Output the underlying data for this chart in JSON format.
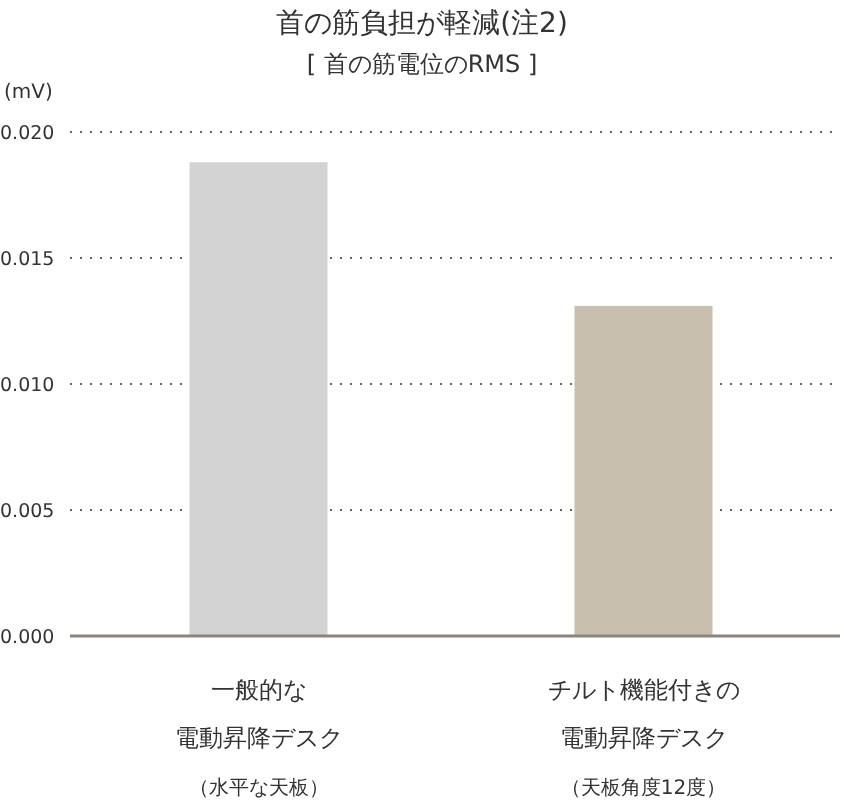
{
  "chart_data": {
    "type": "bar",
    "title": "首の筋負担が軽減(注2)",
    "subtitle": "[ 首の筋電位のRMS ]",
    "ylabel": "(mV)",
    "categories": [
      "一般的な電動昇降デスク（水平な天板）",
      "チルト機能付きの電動昇降デスク（天板角度12度）"
    ],
    "values": [
      0.0188,
      0.0131
    ],
    "colors": [
      "#d3d3d3",
      "#c9bfae"
    ],
    "ylim": [
      0,
      0.02
    ],
    "yticks": [
      {
        "value": 0,
        "label": "0.000"
      },
      {
        "value": 0.005,
        "label": "0.005"
      },
      {
        "value": 0.01,
        "label": "0.010"
      },
      {
        "value": 0.015,
        "label": "0.015"
      },
      {
        "value": 0.02,
        "label": "0.020"
      }
    ],
    "grid": "y"
  }
}
